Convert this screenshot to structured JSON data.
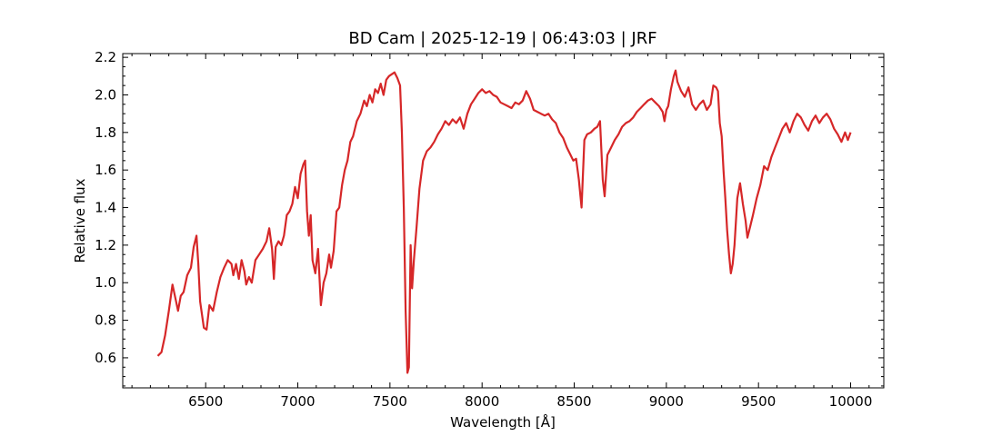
{
  "chart_data": {
    "type": "line",
    "title": "BD Cam | 2025-12-19 | 06:43:03 | JRF",
    "xlabel": "Wavelength [Å]",
    "ylabel": "Relative flux",
    "xlim": [
      6050,
      10180
    ],
    "ylim": [
      0.44,
      2.22
    ],
    "grid": false,
    "x_ticks": [
      6500,
      7000,
      7500,
      8000,
      8500,
      9000,
      9500,
      10000
    ],
    "x_tick_labels": [
      "6500",
      "7000",
      "7500",
      "8000",
      "8500",
      "9000",
      "9500",
      "10000"
    ],
    "y_ticks": [
      0.6,
      0.8,
      1.0,
      1.2,
      1.4,
      1.6,
      1.8,
      2.0,
      2.2
    ],
    "y_tick_labels": [
      "0.6",
      "0.8",
      "1.0",
      "1.2",
      "1.4",
      "1.6",
      "1.8",
      "2.0",
      "2.2"
    ],
    "series": [
      {
        "color": "#d62728",
        "points": [
          [
            6240,
            0.61
          ],
          [
            6260,
            0.63
          ],
          [
            6280,
            0.72
          ],
          [
            6300,
            0.85
          ],
          [
            6320,
            0.99
          ],
          [
            6335,
            0.92
          ],
          [
            6350,
            0.85
          ],
          [
            6365,
            0.93
          ],
          [
            6380,
            0.95
          ],
          [
            6400,
            1.04
          ],
          [
            6420,
            1.08
          ],
          [
            6435,
            1.19
          ],
          [
            6450,
            1.25
          ],
          [
            6460,
            1.1
          ],
          [
            6470,
            0.9
          ],
          [
            6490,
            0.76
          ],
          [
            6505,
            0.75
          ],
          [
            6520,
            0.88
          ],
          [
            6540,
            0.85
          ],
          [
            6560,
            0.95
          ],
          [
            6580,
            1.03
          ],
          [
            6600,
            1.08
          ],
          [
            6620,
            1.12
          ],
          [
            6640,
            1.1
          ],
          [
            6650,
            1.04
          ],
          [
            6665,
            1.1
          ],
          [
            6680,
            1.02
          ],
          [
            6695,
            1.12
          ],
          [
            6710,
            1.06
          ],
          [
            6720,
            0.99
          ],
          [
            6735,
            1.03
          ],
          [
            6750,
            1.0
          ],
          [
            6770,
            1.12
          ],
          [
            6790,
            1.15
          ],
          [
            6810,
            1.18
          ],
          [
            6830,
            1.22
          ],
          [
            6845,
            1.29
          ],
          [
            6860,
            1.18
          ],
          [
            6870,
            1.02
          ],
          [
            6880,
            1.19
          ],
          [
            6895,
            1.22
          ],
          [
            6910,
            1.2
          ],
          [
            6925,
            1.25
          ],
          [
            6940,
            1.36
          ],
          [
            6955,
            1.38
          ],
          [
            6970,
            1.42
          ],
          [
            6985,
            1.51
          ],
          [
            7000,
            1.45
          ],
          [
            7015,
            1.58
          ],
          [
            7030,
            1.63
          ],
          [
            7040,
            1.65
          ],
          [
            7050,
            1.38
          ],
          [
            7060,
            1.25
          ],
          [
            7070,
            1.36
          ],
          [
            7080,
            1.12
          ],
          [
            7095,
            1.05
          ],
          [
            7110,
            1.18
          ],
          [
            7125,
            0.88
          ],
          [
            7140,
            1.0
          ],
          [
            7155,
            1.05
          ],
          [
            7170,
            1.15
          ],
          [
            7180,
            1.08
          ],
          [
            7195,
            1.17
          ],
          [
            7210,
            1.38
          ],
          [
            7225,
            1.4
          ],
          [
            7240,
            1.52
          ],
          [
            7255,
            1.6
          ],
          [
            7270,
            1.65
          ],
          [
            7285,
            1.75
          ],
          [
            7300,
            1.78
          ],
          [
            7320,
            1.86
          ],
          [
            7340,
            1.9
          ],
          [
            7360,
            1.97
          ],
          [
            7375,
            1.94
          ],
          [
            7390,
            2.0
          ],
          [
            7405,
            1.96
          ],
          [
            7420,
            2.03
          ],
          [
            7435,
            2.01
          ],
          [
            7450,
            2.06
          ],
          [
            7465,
            2.0
          ],
          [
            7480,
            2.08
          ],
          [
            7495,
            2.1
          ],
          [
            7510,
            2.11
          ],
          [
            7525,
            2.12
          ],
          [
            7540,
            2.09
          ],
          [
            7555,
            2.05
          ],
          [
            7565,
            1.8
          ],
          [
            7575,
            1.4
          ],
          [
            7585,
            0.85
          ],
          [
            7595,
            0.52
          ],
          [
            7603,
            0.55
          ],
          [
            7612,
            1.2
          ],
          [
            7620,
            0.97
          ],
          [
            7630,
            1.12
          ],
          [
            7645,
            1.3
          ],
          [
            7660,
            1.5
          ],
          [
            7680,
            1.65
          ],
          [
            7700,
            1.7
          ],
          [
            7720,
            1.72
          ],
          [
            7740,
            1.75
          ],
          [
            7760,
            1.79
          ],
          [
            7780,
            1.82
          ],
          [
            7800,
            1.86
          ],
          [
            7820,
            1.84
          ],
          [
            7840,
            1.87
          ],
          [
            7860,
            1.85
          ],
          [
            7880,
            1.88
          ],
          [
            7900,
            1.82
          ],
          [
            7920,
            1.9
          ],
          [
            7940,
            1.95
          ],
          [
            7960,
            1.98
          ],
          [
            7980,
            2.01
          ],
          [
            8000,
            2.03
          ],
          [
            8020,
            2.01
          ],
          [
            8040,
            2.02
          ],
          [
            8060,
            2.0
          ],
          [
            8080,
            1.99
          ],
          [
            8100,
            1.96
          ],
          [
            8120,
            1.95
          ],
          [
            8140,
            1.94
          ],
          [
            8160,
            1.93
          ],
          [
            8180,
            1.96
          ],
          [
            8200,
            1.95
          ],
          [
            8220,
            1.97
          ],
          [
            8240,
            2.02
          ],
          [
            8260,
            1.98
          ],
          [
            8280,
            1.92
          ],
          [
            8300,
            1.91
          ],
          [
            8320,
            1.9
          ],
          [
            8340,
            1.89
          ],
          [
            8360,
            1.9
          ],
          [
            8380,
            1.87
          ],
          [
            8400,
            1.85
          ],
          [
            8420,
            1.8
          ],
          [
            8440,
            1.77
          ],
          [
            8460,
            1.72
          ],
          [
            8480,
            1.68
          ],
          [
            8495,
            1.65
          ],
          [
            8510,
            1.66
          ],
          [
            8525,
            1.55
          ],
          [
            8540,
            1.4
          ],
          [
            8555,
            1.76
          ],
          [
            8570,
            1.79
          ],
          [
            8590,
            1.8
          ],
          [
            8610,
            1.82
          ],
          [
            8625,
            1.83
          ],
          [
            8640,
            1.86
          ],
          [
            8655,
            1.55
          ],
          [
            8665,
            1.46
          ],
          [
            8680,
            1.68
          ],
          [
            8700,
            1.72
          ],
          [
            8720,
            1.76
          ],
          [
            8740,
            1.79
          ],
          [
            8760,
            1.83
          ],
          [
            8780,
            1.85
          ],
          [
            8800,
            1.86
          ],
          [
            8820,
            1.88
          ],
          [
            8840,
            1.91
          ],
          [
            8860,
            1.93
          ],
          [
            8880,
            1.95
          ],
          [
            8900,
            1.97
          ],
          [
            8920,
            1.98
          ],
          [
            8940,
            1.96
          ],
          [
            8960,
            1.94
          ],
          [
            8980,
            1.91
          ],
          [
            8990,
            1.86
          ],
          [
            9000,
            1.92
          ],
          [
            9010,
            1.94
          ],
          [
            9025,
            2.03
          ],
          [
            9040,
            2.1
          ],
          [
            9050,
            2.13
          ],
          [
            9060,
            2.07
          ],
          [
            9080,
            2.02
          ],
          [
            9100,
            1.99
          ],
          [
            9120,
            2.04
          ],
          [
            9140,
            1.95
          ],
          [
            9160,
            1.92
          ],
          [
            9180,
            1.95
          ],
          [
            9200,
            1.97
          ],
          [
            9220,
            1.92
          ],
          [
            9240,
            1.95
          ],
          [
            9255,
            2.05
          ],
          [
            9270,
            2.04
          ],
          [
            9280,
            2.02
          ],
          [
            9290,
            1.85
          ],
          [
            9300,
            1.78
          ],
          [
            9310,
            1.6
          ],
          [
            9320,
            1.45
          ],
          [
            9330,
            1.28
          ],
          [
            9340,
            1.15
          ],
          [
            9350,
            1.05
          ],
          [
            9360,
            1.1
          ],
          [
            9370,
            1.2
          ],
          [
            9385,
            1.45
          ],
          [
            9400,
            1.53
          ],
          [
            9415,
            1.42
          ],
          [
            9430,
            1.33
          ],
          [
            9440,
            1.24
          ],
          [
            9455,
            1.3
          ],
          [
            9470,
            1.36
          ],
          [
            9490,
            1.45
          ],
          [
            9510,
            1.52
          ],
          [
            9530,
            1.62
          ],
          [
            9550,
            1.6
          ],
          [
            9570,
            1.67
          ],
          [
            9590,
            1.72
          ],
          [
            9610,
            1.77
          ],
          [
            9630,
            1.82
          ],
          [
            9650,
            1.85
          ],
          [
            9670,
            1.8
          ],
          [
            9690,
            1.86
          ],
          [
            9710,
            1.9
          ],
          [
            9730,
            1.88
          ],
          [
            9750,
            1.84
          ],
          [
            9770,
            1.81
          ],
          [
            9790,
            1.86
          ],
          [
            9810,
            1.89
          ],
          [
            9830,
            1.85
          ],
          [
            9850,
            1.88
          ],
          [
            9870,
            1.9
          ],
          [
            9890,
            1.87
          ],
          [
            9910,
            1.82
          ],
          [
            9930,
            1.79
          ],
          [
            9950,
            1.75
          ],
          [
            9970,
            1.8
          ],
          [
            9985,
            1.76
          ],
          [
            10000,
            1.8
          ]
        ]
      }
    ]
  }
}
